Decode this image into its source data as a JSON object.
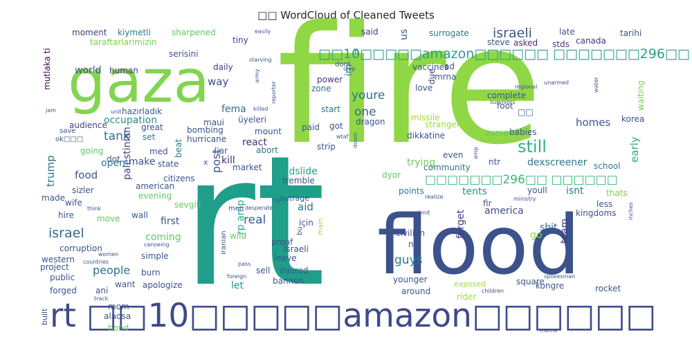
{
  "chart_data": {
    "type": "wordcloud",
    "title": "□□ WordCloud of Cleaned Tweets",
    "palette": "viridis",
    "words": [
      {
        "text": "fire",
        "weight": 100,
        "color": "#8fd744"
      },
      {
        "text": "rt",
        "weight": 100,
        "color": "#1f9e89"
      },
      {
        "text": "flood",
        "weight": 74,
        "color": "#3b528b"
      },
      {
        "text": "gaza",
        "weight": 55,
        "color": "#83d44f"
      },
      {
        "text": "rt □□10□□□□□amazon□□□□□□",
        "weight": 30,
        "color": "#3e4a89"
      },
      {
        "text": "□□10□□□□□amazon□□□□□□ □□□□□□□296□□",
        "weight": 12,
        "color": "#2a9d8f"
      },
      {
        "text": "israeli",
        "weight": 9,
        "color": "#39568c"
      },
      {
        "text": "□□□□□□□296□□ □□□□□□",
        "weight": 9,
        "color": "#35b779"
      },
      {
        "text": "still",
        "weight": 11,
        "color": "#2fb47c"
      },
      {
        "text": "israel",
        "weight": 9,
        "color": "#31688e"
      },
      {
        "text": "tank",
        "weight": 8,
        "color": "#2d708e"
      },
      {
        "text": "one",
        "weight": 8,
        "color": "#31688e"
      },
      {
        "text": "post",
        "weight": 8,
        "color": "#3b528b"
      },
      {
        "text": "real",
        "weight": 8,
        "color": "#355f8d"
      },
      {
        "text": "youre",
        "weight": 8,
        "color": "#2c728e"
      },
      {
        "text": "guys",
        "weight": 8,
        "color": "#2a788e"
      },
      {
        "text": "trump",
        "weight": 7,
        "color": "#2c728e"
      },
      {
        "text": "food",
        "weight": 7,
        "color": "#39568c"
      },
      {
        "text": "people",
        "weight": 7,
        "color": "#2e6e8e"
      },
      {
        "text": "homes",
        "weight": 7,
        "color": "#3b528b"
      },
      {
        "text": "early",
        "weight": 7,
        "color": "#27ad81"
      },
      {
        "text": "aid",
        "weight": 7,
        "color": "#2c728e"
      },
      {
        "text": "way",
        "weight": 7,
        "color": "#3e4a89"
      },
      {
        "text": "fema",
        "weight": 6,
        "color": "#2f6c8e"
      },
      {
        "text": "occupation",
        "weight": 6,
        "color": "#21918c"
      },
      {
        "text": "open",
        "weight": 6,
        "color": "#2a788e"
      },
      {
        "text": "react",
        "weight": 6,
        "color": "#46337e"
      },
      {
        "text": "kill",
        "weight": 6,
        "color": "#482878"
      },
      {
        "text": "let",
        "weight": 6,
        "color": "#1f9a8a"
      },
      {
        "text": "trying",
        "weight": 6,
        "color": "#6ece58"
      },
      {
        "text": "dexscreener",
        "weight": 6,
        "color": "#2a788e"
      },
      {
        "text": "landslide",
        "weight": 6,
        "color": "#22a884"
      },
      {
        "text": "tents",
        "weight": 6,
        "color": "#1f988b"
      },
      {
        "text": "america",
        "weight": 6,
        "color": "#3e4a89"
      },
      {
        "text": "shit",
        "weight": 6,
        "color": "#31688e"
      },
      {
        "text": "isnt",
        "weight": 6,
        "color": "#2a788e"
      },
      {
        "text": "coming",
        "weight": 6,
        "color": "#5ec962"
      },
      {
        "text": "first",
        "weight": 6,
        "color": "#3b528b"
      },
      {
        "text": "rp amp",
        "weight": 6,
        "color": "#27ad81"
      },
      {
        "text": "palestinian",
        "weight": 6,
        "color": "#433e85"
      },
      {
        "text": "world",
        "weight": 5,
        "color": "#3b528b"
      },
      {
        "text": "us",
        "weight": 5,
        "color": "#39568c"
      },
      {
        "text": "im",
        "weight": 5,
        "color": "#26828e"
      },
      {
        "text": "go",
        "weight": 5,
        "color": "#90d743"
      },
      {
        "text": "make",
        "weight": 5,
        "color": "#3b528b"
      },
      {
        "text": "forget",
        "weight": 5,
        "color": "#443983"
      },
      {
        "text": "team",
        "weight": 5,
        "color": "#443983"
      },
      {
        "text": "school",
        "weight": 5,
        "color": "#2a788e"
      },
      {
        "text": "community",
        "weight": 5,
        "color": "#2c728e"
      },
      {
        "text": "burn",
        "weight": 5,
        "color": "#3e4a89"
      },
      {
        "text": "moment",
        "weight": 4,
        "color": "#453781"
      },
      {
        "text": "kiymetli",
        "weight": 4,
        "color": "#2a788e"
      },
      {
        "text": "sharpened",
        "weight": 4,
        "color": "#5ec962"
      },
      {
        "text": "tiny",
        "weight": 4,
        "color": "#433e85"
      },
      {
        "text": "said",
        "weight": 4,
        "color": "#433e85"
      },
      {
        "text": "surrogate",
        "weight": 4,
        "color": "#2a788e"
      },
      {
        "text": "late",
        "weight": 4,
        "color": "#3b528b"
      },
      {
        "text": "tarihi",
        "weight": 4,
        "color": "#3b528b"
      },
      {
        "text": "taraftarlarimizin",
        "weight": 4,
        "color": "#7ad151"
      },
      {
        "text": "steve",
        "weight": 4,
        "color": "#3b528b"
      },
      {
        "text": "asked",
        "weight": 4,
        "color": "#482878"
      },
      {
        "text": "stds",
        "weight": 4,
        "color": "#46337e"
      },
      {
        "text": "canada",
        "weight": 4,
        "color": "#46337e"
      },
      {
        "text": "human",
        "weight": 4,
        "color": "#46337e"
      },
      {
        "text": "serisini",
        "weight": 4,
        "color": "#3b528b"
      },
      {
        "text": "daily",
        "weight": 4,
        "color": "#433e85"
      },
      {
        "text": "mutlaka ti",
        "weight": 4,
        "color": "#440154"
      },
      {
        "text": "power",
        "weight": 4,
        "color": "#46337e"
      },
      {
        "text": "zone",
        "weight": 4,
        "color": "#2e6e8e"
      },
      {
        "text": "dont",
        "weight": 3,
        "color": "#3b528b"
      },
      {
        "text": "vaccines",
        "weight": 4,
        "color": "#3b528b"
      },
      {
        "text": "ad",
        "weight": 4,
        "color": "#3b528b"
      },
      {
        "text": "mrna",
        "weight": 4,
        "color": "#3b528b"
      },
      {
        "text": "love",
        "weight": 4,
        "color": "#3b528b"
      },
      {
        "text": "due",
        "weight": 4,
        "color": "#433e85"
      },
      {
        "text": "complete",
        "weight": 4,
        "color": "#3b528b"
      },
      {
        "text": "foot",
        "weight": 4,
        "color": "#3b528b"
      },
      {
        "text": "waiting",
        "weight": 4,
        "color": "#7ad151"
      },
      {
        "text": "start",
        "weight": 4,
        "color": "#2c728e"
      },
      {
        "text": "audience",
        "weight": 4,
        "color": "#433e85"
      },
      {
        "text": "hazırladık",
        "weight": 4,
        "color": "#3b528b"
      },
      {
        "text": "üyeleri",
        "weight": 4,
        "color": "#3b528b"
      },
      {
        "text": "maui",
        "weight": 4,
        "color": "#3b528b"
      },
      {
        "text": "missile",
        "weight": 4,
        "color": "#a0da39"
      },
      {
        "text": "strangers",
        "weight": 4,
        "color": "#a0da39"
      },
      {
        "text": "korea",
        "weight": 4,
        "color": "#3b528b"
      },
      {
        "text": "great",
        "weight": 4,
        "color": "#3b528b"
      },
      {
        "text": "bombing",
        "weight": 4,
        "color": "#3b528b"
      },
      {
        "text": "paid",
        "weight": 4,
        "color": "#3b528b"
      },
      {
        "text": "got",
        "weight": 4,
        "color": "#3b528b"
      },
      {
        "text": "dragon",
        "weight": 4,
        "color": "#3b528b"
      },
      {
        "text": "zuma",
        "weight": 4,
        "color": "#5ec962"
      },
      {
        "text": "babies",
        "weight": 4,
        "color": "#3b528b"
      },
      {
        "text": "set",
        "weight": 4,
        "color": "#2a788e"
      },
      {
        "text": "hurricane",
        "weight": 4,
        "color": "#3b528b"
      },
      {
        "text": "mount",
        "weight": 4,
        "color": "#3b528b"
      },
      {
        "text": "dikkatine",
        "weight": 4,
        "color": "#3b528b"
      },
      {
        "text": "going",
        "weight": 4,
        "color": "#5ec962"
      },
      {
        "text": "med",
        "weight": 4,
        "color": "#3b528b"
      },
      {
        "text": "beat",
        "weight": 4,
        "color": "#2a788e"
      },
      {
        "text": "liar",
        "weight": 4,
        "color": "#3b528b"
      },
      {
        "text": "abort",
        "weight": 4,
        "color": "#2a788e"
      },
      {
        "text": "strip",
        "weight": 4,
        "color": "#3b528b"
      },
      {
        "text": "even",
        "weight": 4,
        "color": "#3b528b"
      },
      {
        "text": "ntr",
        "weight": 4,
        "color": "#3b528b"
      },
      {
        "text": "state",
        "weight": 4,
        "color": "#3b528b"
      },
      {
        "text": "market",
        "weight": 4,
        "color": "#3b528b"
      },
      {
        "text": "dyor",
        "weight": 4,
        "color": "#5ec962"
      },
      {
        "text": "citizens",
        "weight": 4,
        "color": "#3b528b"
      },
      {
        "text": "tremble",
        "weight": 4,
        "color": "#3b528b"
      },
      {
        "text": "sizler",
        "weight": 4,
        "color": "#3b528b"
      },
      {
        "text": "american",
        "weight": 4,
        "color": "#3b528b"
      },
      {
        "text": "evening",
        "weight": 4,
        "color": "#5ec962"
      },
      {
        "text": "points",
        "weight": 4,
        "color": "#2a788e"
      },
      {
        "text": "youll",
        "weight": 4,
        "color": "#3b528b"
      },
      {
        "text": "thats",
        "weight": 4,
        "color": "#7ad151"
      },
      {
        "text": "made",
        "weight": 4,
        "color": "#3b528b"
      },
      {
        "text": "wife",
        "weight": 4,
        "color": "#3b528b"
      },
      {
        "text": "sevgili",
        "weight": 4,
        "color": "#5ec962"
      },
      {
        "text": "fir",
        "weight": 4,
        "color": "#3b528b"
      },
      {
        "text": "less",
        "weight": 4,
        "color": "#3b528b"
      },
      {
        "text": "hire",
        "weight": 4,
        "color": "#3b528b"
      },
      {
        "text": "move",
        "weight": 4,
        "color": "#5ec962"
      },
      {
        "text": "wall",
        "weight": 4,
        "color": "#3b528b"
      },
      {
        "text": "kingdoms",
        "weight": 4,
        "color": "#3b528b"
      },
      {
        "text": "corruption",
        "weight": 4,
        "color": "#3b528b"
      },
      {
        "text": "wild",
        "weight": 4,
        "color": "#5ec962"
      },
      {
        "text": "proof",
        "weight": 4,
        "color": "#3b528b"
      },
      {
        "text": "civilian",
        "weight": 4,
        "color": "#3b528b"
      },
      {
        "text": "simple",
        "weight": 4,
        "color": "#3b528b"
      },
      {
        "text": "lsraeli",
        "weight": 4,
        "color": "#3b528b"
      },
      {
        "text": "nfa",
        "weight": 4,
        "color": "#3b528b"
      },
      {
        "text": "western",
        "weight": 4,
        "color": "#3b528b"
      },
      {
        "text": "leave",
        "weight": 4,
        "color": "#3b528b"
      },
      {
        "text": "için",
        "weight": 4,
        "color": "#3b528b"
      },
      {
        "text": "project",
        "weight": 4,
        "color": "#3b528b"
      },
      {
        "text": "sell",
        "weight": 4,
        "color": "#3b528b"
      },
      {
        "text": "injured",
        "weight": 4,
        "color": "#3b528b"
      },
      {
        "text": "public",
        "weight": 4,
        "color": "#3b528b"
      },
      {
        "text": "bannon",
        "weight": 4,
        "color": "#3b528b"
      },
      {
        "text": "younger",
        "weight": 4,
        "color": "#3b528b"
      },
      {
        "text": "exposed",
        "weight": 4,
        "color": "#a0da39"
      },
      {
        "text": "square",
        "weight": 4,
        "color": "#3b528b"
      },
      {
        "text": "forged",
        "weight": 4,
        "color": "#3b528b"
      },
      {
        "text": "want",
        "weight": 4,
        "color": "#3b528b"
      },
      {
        "text": "apologize",
        "weight": 4,
        "color": "#3b528b"
      },
      {
        "text": "kongre",
        "weight": 4,
        "color": "#3b528b"
      },
      {
        "text": "rocket",
        "weight": 4,
        "color": "#3b528b"
      },
      {
        "text": "around",
        "weight": 4,
        "color": "#3b528b"
      },
      {
        "text": "rider",
        "weight": 4,
        "color": "#a0da39"
      },
      {
        "text": "mom",
        "weight": 4,
        "color": "#3b528b"
      },
      {
        "text": "alaqsa",
        "weight": 4,
        "color": "#3b528b"
      },
      {
        "text": "bond",
        "weight": 4,
        "color": "#5ec962"
      },
      {
        "text": "built",
        "weight": 4,
        "color": "#3b528b"
      },
      {
        "text": "iranian",
        "weight": 3,
        "color": "#3b528b"
      },
      {
        "text": "men",
        "weight": 3,
        "color": "#3b528b"
      },
      {
        "text": "bu",
        "weight": 3,
        "color": "#3b528b"
      },
      {
        "text": "main",
        "weight": 3,
        "color": "#a0da39"
      },
      {
        "text": "ani",
        "weight": 3,
        "color": "#3b528b"
      },
      {
        "text": "dot",
        "weight": 3,
        "color": "#3b528b"
      },
      {
        "text": "x",
        "weight": 3,
        "color": "#3b528b"
      },
      {
        "text": "ok□□□",
        "weight": 3,
        "color": "#3b528b"
      },
      {
        "text": "save",
        "weight": 3,
        "color": "#3b528b"
      },
      {
        "text": "unit",
        "weight": 3,
        "color": "#3b528b"
      },
      {
        "text": "jam",
        "weight": 3,
        "color": "#3b528b"
      },
      {
        "text": "army",
        "weight": 3,
        "color": "#3b528b"
      },
      {
        "text": "h",
        "weight": 3,
        "color": "#3b528b"
      },
      {
        "text": "□□",
        "weight": 3,
        "color": "#3b528b"
      },
      {
        "text": "wtaf",
        "weight": 3,
        "color": "#3b528b"
      },
      {
        "text": "doom",
        "weight": 3,
        "color": "#3b528b"
      },
      {
        "text": "desperate",
        "weight": 3,
        "color": "#3b528b"
      },
      {
        "text": "pass",
        "weight": 3,
        "color": "#3b528b"
      },
      {
        "text": "foreign",
        "weight": 3,
        "color": "#3b528b"
      },
      {
        "text": "women",
        "weight": 3,
        "color": "#3b528b"
      },
      {
        "text": "countries",
        "weight": 3,
        "color": "#3b528b"
      },
      {
        "text": "canoeing",
        "weight": 3,
        "color": "#3b528b"
      },
      {
        "text": "think",
        "weight": 3,
        "color": "#3b528b"
      },
      {
        "text": "track",
        "weight": 3,
        "color": "#3b528b"
      },
      {
        "text": "children",
        "weight": 3,
        "color": "#3b528b"
      },
      {
        "text": "spokesman",
        "weight": 3,
        "color": "#3b528b"
      },
      {
        "text": "meme",
        "weight": 3,
        "color": "#3b528b"
      },
      {
        "text": "try",
        "weight": 3,
        "color": "#3b528b"
      },
      {
        "text": "limit",
        "weight": 3,
        "color": "#3b528b"
      },
      {
        "text": "realize",
        "weight": 3,
        "color": "#3b528b"
      },
      {
        "text": "ministry",
        "weight": 3,
        "color": "#3b528b"
      },
      {
        "text": "inches",
        "weight": 3,
        "color": "#3b528b"
      },
      {
        "text": "amp",
        "weight": 3,
        "color": "#3b528b"
      },
      {
        "text": "easily",
        "weight": 3,
        "color": "#3b528b"
      },
      {
        "text": "starving",
        "weight": 3,
        "color": "#3b528b"
      },
      {
        "text": "stop",
        "weight": 3,
        "color": "#3b528b"
      },
      {
        "text": "reporter",
        "weight": 3,
        "color": "#3b528b"
      },
      {
        "text": "killed",
        "weight": 3,
        "color": "#3b528b"
      },
      {
        "text": "regional",
        "weight": 3,
        "color": "#3b528b"
      },
      {
        "text": "unarmed",
        "weight": 3,
        "color": "#3b528b"
      },
      {
        "text": "water",
        "weight": 3,
        "color": "#3b528b"
      },
      {
        "text": "survivors",
        "weight": 3,
        "color": "#3b528b"
      },
      {
        "text": "outrage",
        "weight": 3,
        "color": "#3b528b"
      }
    ]
  }
}
